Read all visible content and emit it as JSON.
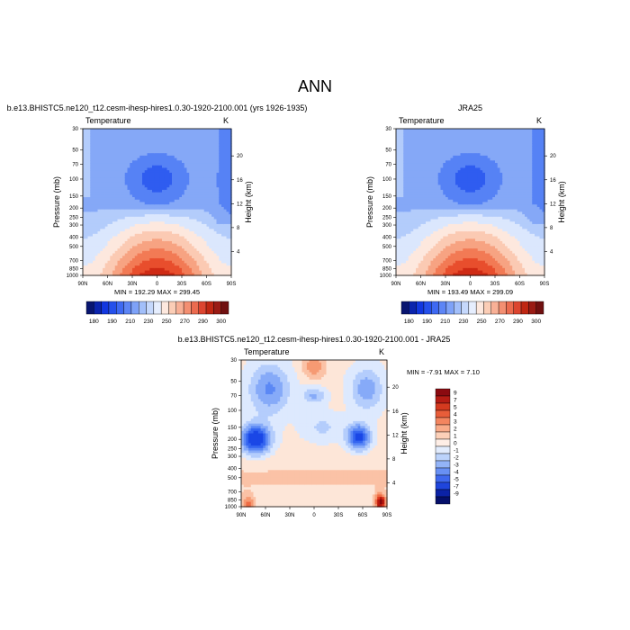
{
  "figure": {
    "main_title": "ANN"
  },
  "chart_data": [
    {
      "type": "heatmap",
      "title": "b.e13.BHISTC5.ne120_t12.cesm-ihesp-hires1.0.30-1920-2100.001 (yrs 1926-1935)",
      "left_label": "Temperature",
      "right_label": "K",
      "xlabel": "",
      "ylabel": "Pressure (mb)",
      "ylabel_right": "Height (km)",
      "x_ticks": [
        "90N",
        "60N",
        "30N",
        "0",
        "30S",
        "60S",
        "90S"
      ],
      "y_ticks": [
        "30",
        "50",
        "70",
        "100",
        "150",
        "200",
        "250",
        "300",
        "400",
        "500",
        "700",
        "850",
        "1000"
      ],
      "y_right_ticks": [
        "20",
        "16",
        "12",
        "8",
        "4"
      ],
      "xlim": [
        90,
        -90
      ],
      "ylim": [
        1000,
        30
      ],
      "stats": "MIN = 192.29   MAX = 299.45",
      "field_scale": 1.0,
      "levels": [
        180,
        190,
        200,
        210,
        220,
        230,
        240,
        250,
        260,
        270,
        280,
        290,
        300
      ],
      "colorbar_labels": [
        "180",
        "190",
        "210",
        "230",
        "250",
        "270",
        "290",
        "300"
      ],
      "colorbar_orientation": "horizontal"
    },
    {
      "type": "heatmap",
      "title": "JRA25",
      "left_label": "Temperature",
      "right_label": "K",
      "xlabel": "",
      "ylabel": "Pressure (mb)",
      "ylabel_right": "Height (km)",
      "x_ticks": [
        "90N",
        "60N",
        "30N",
        "0",
        "30S",
        "60S",
        "90S"
      ],
      "y_ticks": [
        "30",
        "50",
        "70",
        "100",
        "150",
        "200",
        "250",
        "300",
        "400",
        "500",
        "700",
        "850",
        "1000"
      ],
      "y_right_ticks": [
        "20",
        "16",
        "12",
        "8",
        "4"
      ],
      "xlim": [
        90,
        -90
      ],
      "ylim": [
        1000,
        30
      ],
      "stats": "MIN = 193.49   MAX = 299.09",
      "field_scale": 1.0,
      "levels": [
        180,
        190,
        200,
        210,
        220,
        230,
        240,
        250,
        260,
        270,
        280,
        290,
        300
      ],
      "colorbar_labels": [
        "180",
        "190",
        "210",
        "230",
        "250",
        "270",
        "290",
        "300"
      ],
      "colorbar_orientation": "horizontal"
    },
    {
      "type": "heatmap",
      "title": "b.e13.BHISTC5.ne120_t12.cesm-ihesp-hires1.0.30-1920-2100.001 - JRA25",
      "left_label": "Temperature",
      "right_label": "K",
      "xlabel": "",
      "ylabel": "Pressure (mb)",
      "ylabel_right": "Height (km)",
      "x_ticks": [
        "90N",
        "60N",
        "30N",
        "0",
        "30S",
        "60S",
        "90S"
      ],
      "y_ticks": [
        "30",
        "50",
        "70",
        "100",
        "150",
        "200",
        "250",
        "300",
        "400",
        "500",
        "700",
        "850",
        "1000"
      ],
      "y_right_ticks": [
        "20",
        "16",
        "12",
        "8",
        "4"
      ],
      "xlim": [
        90,
        -90
      ],
      "ylim": [
        1000,
        30
      ],
      "stats": "MIN =  -7.91   MAX =   7.10",
      "field_scale": 1.0,
      "levels": [
        -9,
        -7,
        -5,
        -4,
        -3,
        -2,
        -1,
        0,
        1,
        2,
        3,
        4,
        5,
        7,
        9
      ],
      "colorbar_labels": [
        "9",
        "7",
        "5",
        "4",
        "3",
        "2",
        "1",
        "0",
        "-1",
        "-2",
        "-3",
        "-4",
        "-5",
        "-7",
        "-9"
      ],
      "colorbar_orientation": "vertical"
    }
  ]
}
